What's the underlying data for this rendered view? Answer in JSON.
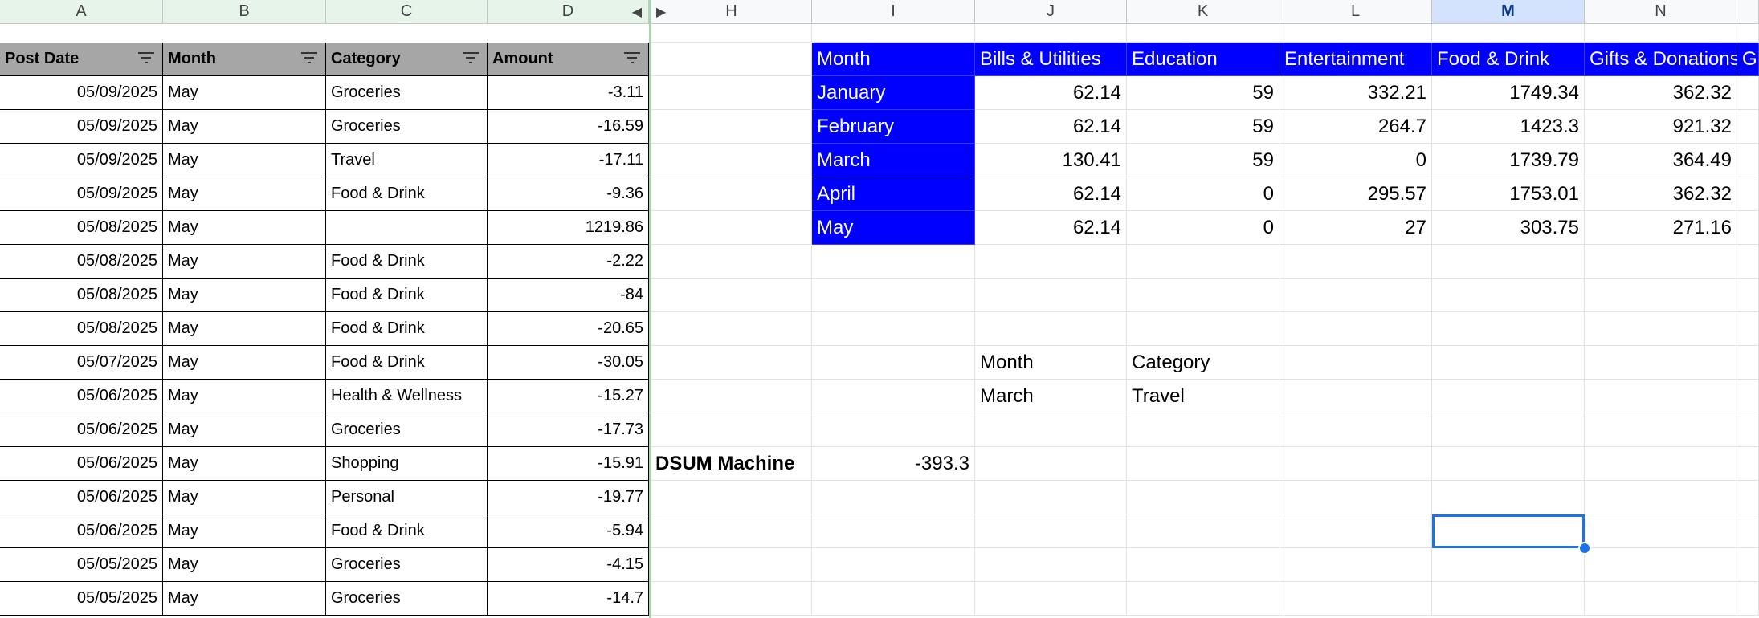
{
  "col_headers": [
    "A",
    "B",
    "C",
    "D",
    "H",
    "I",
    "J",
    "K",
    "L",
    "M",
    "N"
  ],
  "left_table": {
    "headers": [
      "Post Date",
      "Month",
      "Category",
      "Amount"
    ],
    "rows": [
      [
        "05/09/2025",
        "May",
        "Groceries",
        "-3.11"
      ],
      [
        "05/09/2025",
        "May",
        "Groceries",
        "-16.59"
      ],
      [
        "05/09/2025",
        "May",
        "Travel",
        "-17.11"
      ],
      [
        "05/09/2025",
        "May",
        "Food & Drink",
        "-9.36"
      ],
      [
        "05/08/2025",
        "May",
        "",
        "1219.86"
      ],
      [
        "05/08/2025",
        "May",
        "Food & Drink",
        "-2.22"
      ],
      [
        "05/08/2025",
        "May",
        "Food & Drink",
        "-84"
      ],
      [
        "05/08/2025",
        "May",
        "Food & Drink",
        "-20.65"
      ],
      [
        "05/07/2025",
        "May",
        "Food & Drink",
        "-30.05"
      ],
      [
        "05/06/2025",
        "May",
        "Health & Wellness",
        "-15.27"
      ],
      [
        "05/06/2025",
        "May",
        "Groceries",
        "-17.73"
      ],
      [
        "05/06/2025",
        "May",
        "Shopping",
        "-15.91"
      ],
      [
        "05/06/2025",
        "May",
        "Personal",
        "-19.77"
      ],
      [
        "05/06/2025",
        "May",
        "Food & Drink",
        "-5.94"
      ],
      [
        "05/05/2025",
        "May",
        "Groceries",
        "-4.15"
      ],
      [
        "05/05/2025",
        "May",
        "Groceries",
        "-14.7"
      ]
    ]
  },
  "pivot": {
    "headers": [
      "Month",
      "Bills & Utilities",
      "Education",
      "Entertainment",
      "Food & Drink",
      "Gifts & Donations",
      "G"
    ],
    "rows": [
      [
        "January",
        "62.14",
        "59",
        "332.21",
        "1749.34",
        "362.32"
      ],
      [
        "February",
        "62.14",
        "59",
        "264.7",
        "1423.3",
        "921.32"
      ],
      [
        "March",
        "130.41",
        "59",
        "0",
        "1739.79",
        "364.49"
      ],
      [
        "April",
        "62.14",
        "0",
        "295.57",
        "1753.01",
        "362.32"
      ],
      [
        "May",
        "62.14",
        "0",
        "27",
        "303.75",
        "271.16"
      ]
    ]
  },
  "criteria": {
    "month_label": "Month",
    "category_label": "Category",
    "month_value": "March",
    "category_value": "Travel"
  },
  "dsum": {
    "label": "DSUM Machine",
    "value": "-393.3"
  }
}
